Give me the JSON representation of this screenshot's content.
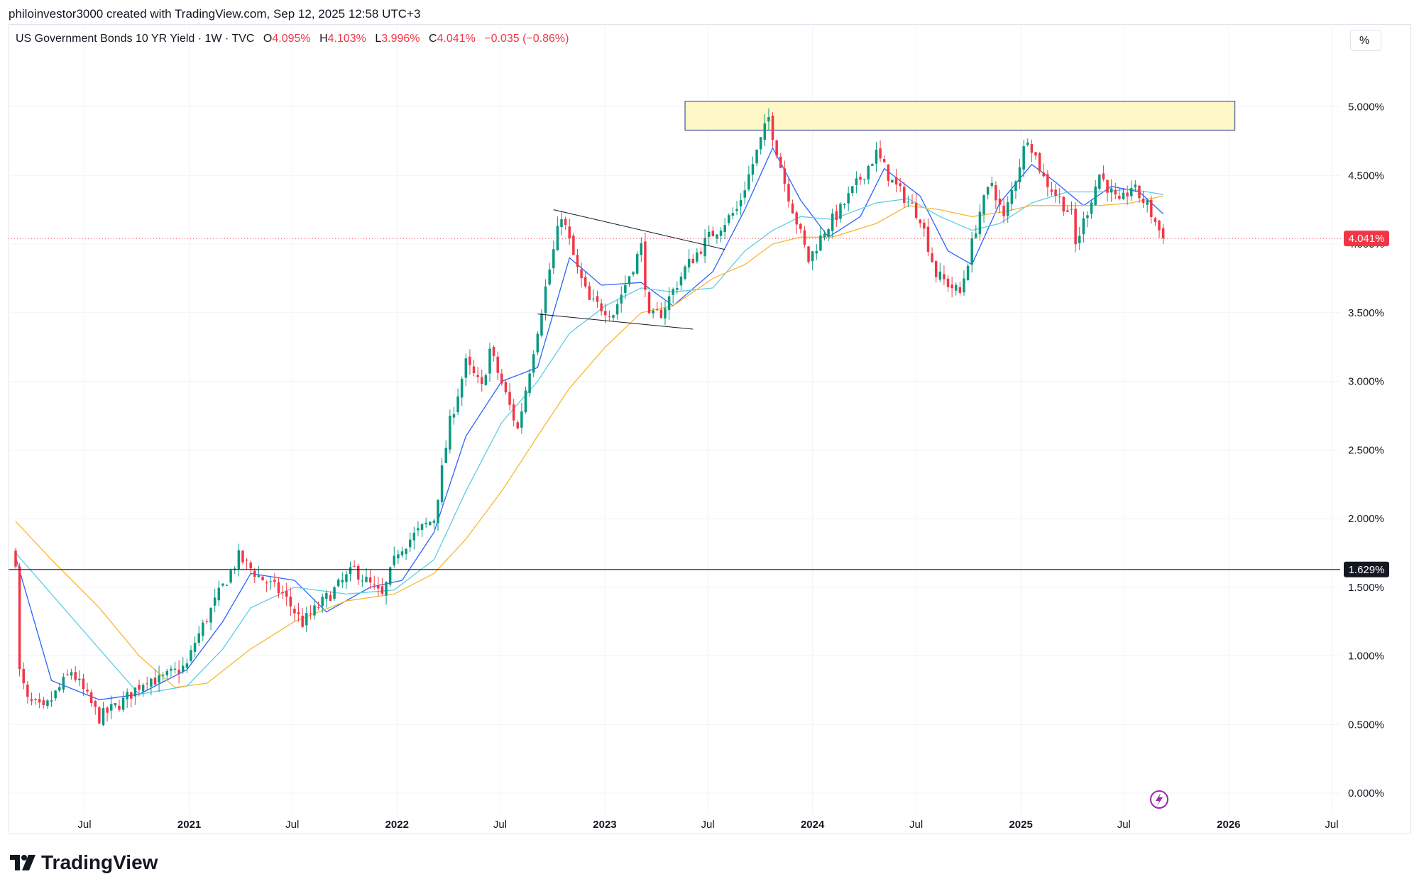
{
  "credit": "philoinvestor3000 created with TradingView.com, Sep 12, 2025 12:58 UTC+3",
  "legend": {
    "symbol": "US Government Bonds 10 YR Yield · 1W · TVC",
    "o_label": "O",
    "o_value": "4.095%",
    "h_label": "H",
    "h_value": "4.103%",
    "l_label": "L",
    "l_value": "3.996%",
    "c_label": "C",
    "c_value": "4.041%",
    "change": "−0.035 (−0.86%)"
  },
  "scale_button": "%",
  "brand": "TradingView",
  "colors": {
    "up": "#089981",
    "down": "#f23645",
    "ma_fast": "#2962ff",
    "ma_mid": "#5fcde4",
    "ma_slow": "#f7b733",
    "zone_fill": "#fff6c7",
    "zone_border": "#1e3a8a",
    "price_tag": "#f23645",
    "level_tag": "#131722"
  },
  "chart_data": {
    "type": "candlestick",
    "title": "US Government Bonds 10 YR Yield · 1W · TVC",
    "y_unit": "%",
    "ylim": [
      0,
      5
    ],
    "y_ticks": [
      "5.000%",
      "4.500%",
      "4.000%",
      "3.500%",
      "3.000%",
      "2.500%",
      "2.000%",
      "1.500%",
      "1.000%",
      "0.500%",
      "0.000%"
    ],
    "x_ticks": [
      {
        "label": "Jul",
        "date": "2020-07-01"
      },
      {
        "label": "2021",
        "date": "2021-01-01"
      },
      {
        "label": "Jul",
        "date": "2021-07-01"
      },
      {
        "label": "2022",
        "date": "2022-01-01"
      },
      {
        "label": "Jul",
        "date": "2022-07-01"
      },
      {
        "label": "2023",
        "date": "2023-01-01"
      },
      {
        "label": "Jul",
        "date": "2023-07-01"
      },
      {
        "label": "2024",
        "date": "2024-01-01"
      },
      {
        "label": "Jul",
        "date": "2024-07-01"
      },
      {
        "label": "2025",
        "date": "2025-01-01"
      },
      {
        "label": "Jul",
        "date": "2025-07-01"
      },
      {
        "label": "2026",
        "date": "2026-01-01"
      },
      {
        "label": "Jul",
        "date": "2026-07-01"
      }
    ],
    "close_path": [
      [
        "2020-03-02",
        1.7
      ],
      [
        "2020-03-09",
        0.88
      ],
      [
        "2020-03-23",
        0.67
      ],
      [
        "2020-04-20",
        0.6
      ],
      [
        "2020-06-08",
        0.89
      ],
      [
        "2020-07-27",
        0.55
      ],
      [
        "2020-09-07",
        0.67
      ],
      [
        "2020-10-19",
        0.84
      ],
      [
        "2020-11-09",
        0.82
      ],
      [
        "2020-12-28",
        0.93
      ],
      [
        "2021-01-11",
        1.1
      ],
      [
        "2021-02-22",
        1.45
      ],
      [
        "2021-03-29",
        1.72
      ],
      [
        "2021-05-03",
        1.58
      ],
      [
        "2021-06-14",
        1.45
      ],
      [
        "2021-07-19",
        1.24
      ],
      [
        "2021-08-02",
        1.3
      ],
      [
        "2021-10-18",
        1.63
      ],
      [
        "2021-12-06",
        1.43
      ],
      [
        "2022-01-03",
        1.77
      ],
      [
        "2022-02-14",
        1.93
      ],
      [
        "2022-03-07",
        2.0
      ],
      [
        "2022-04-04",
        2.7
      ],
      [
        "2022-05-02",
        3.13
      ],
      [
        "2022-05-30",
        2.95
      ],
      [
        "2022-06-13",
        3.23
      ],
      [
        "2022-07-11",
        2.9
      ],
      [
        "2022-08-01",
        2.65
      ],
      [
        "2022-09-19",
        3.68
      ],
      [
        "2022-10-17",
        4.22
      ],
      [
        "2022-11-14",
        3.81
      ],
      [
        "2022-12-05",
        3.58
      ],
      [
        "2023-01-16",
        3.5
      ],
      [
        "2023-03-06",
        3.98
      ],
      [
        "2023-03-20",
        3.45
      ],
      [
        "2023-04-10",
        3.5
      ],
      [
        "2023-05-22",
        3.82
      ],
      [
        "2023-07-03",
        4.05
      ],
      [
        "2023-08-21",
        4.25
      ],
      [
        "2023-10-16",
        4.92
      ],
      [
        "2023-11-13",
        4.45
      ],
      [
        "2023-12-25",
        3.88
      ],
      [
        "2024-01-22",
        4.1
      ],
      [
        "2024-02-19",
        4.25
      ],
      [
        "2024-04-22",
        4.66
      ],
      [
        "2024-05-20",
        4.45
      ],
      [
        "2024-07-08",
        4.2
      ],
      [
        "2024-08-05",
        3.78
      ],
      [
        "2024-09-16",
        3.64
      ],
      [
        "2024-10-21",
        4.24
      ],
      [
        "2024-11-11",
        4.45
      ],
      [
        "2024-12-02",
        4.18
      ],
      [
        "2025-01-13",
        4.79
      ],
      [
        "2025-02-10",
        4.48
      ],
      [
        "2025-03-31",
        4.21
      ],
      [
        "2025-04-07",
        3.99
      ],
      [
        "2025-05-19",
        4.51
      ],
      [
        "2025-06-23",
        4.28
      ],
      [
        "2025-07-14",
        4.42
      ],
      [
        "2025-08-11",
        4.28
      ],
      [
        "2025-09-08",
        4.04
      ]
    ],
    "moving_averages": [
      {
        "color": "#2962ff",
        "points": [
          [
            "2020-03-02",
            1.72
          ],
          [
            "2020-05-04",
            0.82
          ],
          [
            "2020-07-27",
            0.68
          ],
          [
            "2020-10-05",
            0.72
          ],
          [
            "2020-12-28",
            0.9
          ],
          [
            "2021-03-01",
            1.25
          ],
          [
            "2021-04-19",
            1.6
          ],
          [
            "2021-07-05",
            1.55
          ],
          [
            "2021-08-30",
            1.32
          ],
          [
            "2021-11-15",
            1.5
          ],
          [
            "2022-01-10",
            1.55
          ],
          [
            "2022-03-07",
            1.9
          ],
          [
            "2022-05-02",
            2.6
          ],
          [
            "2022-07-04",
            3.0
          ],
          [
            "2022-09-05",
            3.1
          ],
          [
            "2022-10-31",
            3.9
          ],
          [
            "2022-12-26",
            3.7
          ],
          [
            "2023-03-06",
            3.72
          ],
          [
            "2023-05-01",
            3.55
          ],
          [
            "2023-07-10",
            3.8
          ],
          [
            "2023-09-04",
            4.25
          ],
          [
            "2023-10-23",
            4.7
          ],
          [
            "2023-12-11",
            4.32
          ],
          [
            "2024-01-29",
            4.05
          ],
          [
            "2024-03-25",
            4.2
          ],
          [
            "2024-05-06",
            4.55
          ],
          [
            "2024-07-08",
            4.35
          ],
          [
            "2024-08-26",
            3.95
          ],
          [
            "2024-10-07",
            3.85
          ],
          [
            "2024-11-25",
            4.3
          ],
          [
            "2025-01-20",
            4.58
          ],
          [
            "2025-03-03",
            4.45
          ],
          [
            "2025-04-21",
            4.28
          ],
          [
            "2025-06-09",
            4.42
          ],
          [
            "2025-07-28",
            4.38
          ],
          [
            "2025-09-08",
            4.22
          ]
        ]
      },
      {
        "color": "#5fcde4",
        "points": [
          [
            "2020-03-02",
            1.75
          ],
          [
            "2020-05-04",
            1.45
          ],
          [
            "2020-07-27",
            1.05
          ],
          [
            "2020-10-05",
            0.72
          ],
          [
            "2020-12-28",
            0.78
          ],
          [
            "2021-03-01",
            1.05
          ],
          [
            "2021-04-19",
            1.35
          ],
          [
            "2021-07-05",
            1.5
          ],
          [
            "2021-10-04",
            1.45
          ],
          [
            "2021-12-27",
            1.48
          ],
          [
            "2022-03-07",
            1.7
          ],
          [
            "2022-05-02",
            2.2
          ],
          [
            "2022-07-04",
            2.7
          ],
          [
            "2022-09-05",
            3.0
          ],
          [
            "2022-10-31",
            3.35
          ],
          [
            "2023-01-02",
            3.55
          ],
          [
            "2023-03-06",
            3.68
          ],
          [
            "2023-05-01",
            3.65
          ],
          [
            "2023-07-10",
            3.68
          ],
          [
            "2023-09-04",
            3.95
          ],
          [
            "2023-10-23",
            4.1
          ],
          [
            "2023-12-11",
            4.2
          ],
          [
            "2024-02-05",
            4.18
          ],
          [
            "2024-04-22",
            4.3
          ],
          [
            "2024-06-17",
            4.33
          ],
          [
            "2024-08-12",
            4.2
          ],
          [
            "2024-10-07",
            4.1
          ],
          [
            "2024-11-25",
            4.15
          ],
          [
            "2025-01-20",
            4.3
          ],
          [
            "2025-03-24",
            4.38
          ],
          [
            "2025-05-19",
            4.38
          ],
          [
            "2025-07-14",
            4.4
          ],
          [
            "2025-09-08",
            4.36
          ]
        ]
      },
      {
        "color": "#f7b733",
        "points": [
          [
            "2020-03-02",
            1.98
          ],
          [
            "2020-05-04",
            1.7
          ],
          [
            "2020-07-27",
            1.35
          ],
          [
            "2020-10-05",
            1.0
          ],
          [
            "2020-12-07",
            0.77
          ],
          [
            "2021-02-01",
            0.8
          ],
          [
            "2021-04-19",
            1.05
          ],
          [
            "2021-07-05",
            1.25
          ],
          [
            "2021-10-04",
            1.4
          ],
          [
            "2021-12-27",
            1.45
          ],
          [
            "2022-03-07",
            1.6
          ],
          [
            "2022-05-02",
            1.85
          ],
          [
            "2022-07-04",
            2.2
          ],
          [
            "2022-09-05",
            2.6
          ],
          [
            "2022-10-31",
            2.95
          ],
          [
            "2023-01-02",
            3.25
          ],
          [
            "2023-03-06",
            3.5
          ],
          [
            "2023-05-01",
            3.55
          ],
          [
            "2023-07-10",
            3.75
          ],
          [
            "2023-09-04",
            3.85
          ],
          [
            "2023-10-23",
            4.0
          ],
          [
            "2023-12-11",
            4.05
          ],
          [
            "2024-02-05",
            4.05
          ],
          [
            "2024-04-22",
            4.15
          ],
          [
            "2024-06-17",
            4.28
          ],
          [
            "2024-08-12",
            4.25
          ],
          [
            "2024-10-07",
            4.2
          ],
          [
            "2024-11-25",
            4.23
          ],
          [
            "2025-01-20",
            4.28
          ],
          [
            "2025-03-24",
            4.28
          ],
          [
            "2025-05-19",
            4.28
          ],
          [
            "2025-07-14",
            4.3
          ],
          [
            "2025-09-08",
            4.35
          ]
        ]
      }
    ],
    "resistance_zone": {
      "start": "2023-05-22",
      "end": "2026-01-12",
      "y_low": 4.83,
      "y_high": 5.04
    },
    "trendlines": [
      {
        "from": [
          "2022-10-03",
          4.25
        ],
        "to": [
          "2023-07-31",
          3.96
        ]
      },
      {
        "from": [
          "2022-09-05",
          3.49
        ],
        "to": [
          "2023-06-05",
          3.38
        ]
      }
    ],
    "horizontal_level": {
      "value": 1.629,
      "label": "1.629%"
    },
    "last_price": {
      "value": 4.041,
      "label": "4.041%"
    }
  }
}
